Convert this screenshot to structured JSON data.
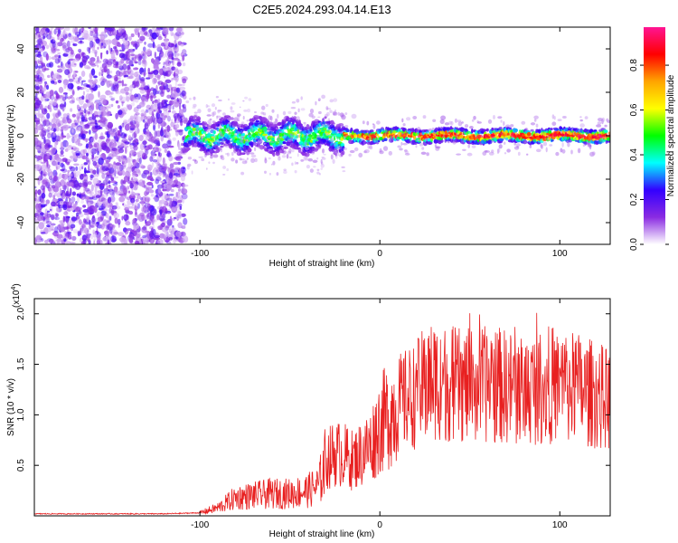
{
  "title": "C2E5.2024.293.04.14.E13",
  "chart_data": [
    {
      "type": "heatmap",
      "name": "spectrogram",
      "xlabel": "Height of straight line (km)",
      "ylabel": "Frequency (Hz)",
      "xlim": [
        -192,
        128
      ],
      "ylim": [
        -50,
        50
      ],
      "xticks": [
        -100,
        0,
        100
      ],
      "yticks": [
        -40,
        -20,
        0,
        20,
        40
      ],
      "xtick_labels": [
        "-100",
        "0",
        "100"
      ],
      "ytick_labels": [
        "-40",
        "-20",
        "0",
        "20",
        "40"
      ],
      "noise_region_x": [
        -192,
        -108
      ],
      "signal_band_freq_hz": [
        -5,
        5
      ],
      "signal_center_freq_hz": 0,
      "colorbar": {
        "label": "Normalized spectral amplitude",
        "range": [
          0,
          0.97
        ],
        "ticks": [
          0.0,
          0.2,
          0.4,
          0.6,
          0.8
        ],
        "tick_labels": [
          "0.0",
          "0.2",
          "0.4",
          "0.6",
          "0.8"
        ],
        "colormap": [
          "#ffffff",
          "#8a2be2",
          "#3300ff",
          "#00ffff",
          "#00ff00",
          "#ffff00",
          "#ffa500",
          "#ff0000",
          "#ff1493"
        ]
      }
    },
    {
      "type": "line",
      "name": "snr",
      "xlabel": "Height of straight line (km)",
      "ylabel": "SNR (10 * v/v)",
      "y_scale_note": "(x10",
      "y_scale_exponent": "4",
      "xlim": [
        -192,
        128
      ],
      "ylim": [
        0,
        2.15
      ],
      "xticks": [
        -100,
        0,
        100
      ],
      "yticks": [
        0.5,
        1.0,
        1.5,
        2.0
      ],
      "xtick_labels": [
        "-100",
        "0",
        "100"
      ],
      "ytick_labels": [
        "0.5",
        "1.0",
        "1.5",
        "2.0"
      ],
      "line_color": "#e82020",
      "envelope": {
        "x": [
          -192,
          -120,
          -100,
          -90,
          -80,
          -70,
          -60,
          -50,
          -40,
          -34,
          -30,
          -25,
          -20,
          -15,
          -10,
          -5,
          0,
          5,
          10,
          15,
          20,
          25,
          30,
          40,
          50,
          60,
          70,
          80,
          90,
          100,
          110,
          120,
          128
        ],
        "y": [
          0.02,
          0.02,
          0.03,
          0.08,
          0.18,
          0.2,
          0.22,
          0.22,
          0.25,
          0.3,
          0.55,
          0.62,
          0.6,
          0.55,
          0.62,
          0.7,
          0.9,
          1.0,
          1.1,
          1.15,
          1.2,
          1.3,
          1.35,
          1.3,
          1.28,
          1.3,
          1.28,
          1.25,
          1.28,
          1.3,
          1.25,
          1.2,
          1.15
        ]
      }
    }
  ]
}
